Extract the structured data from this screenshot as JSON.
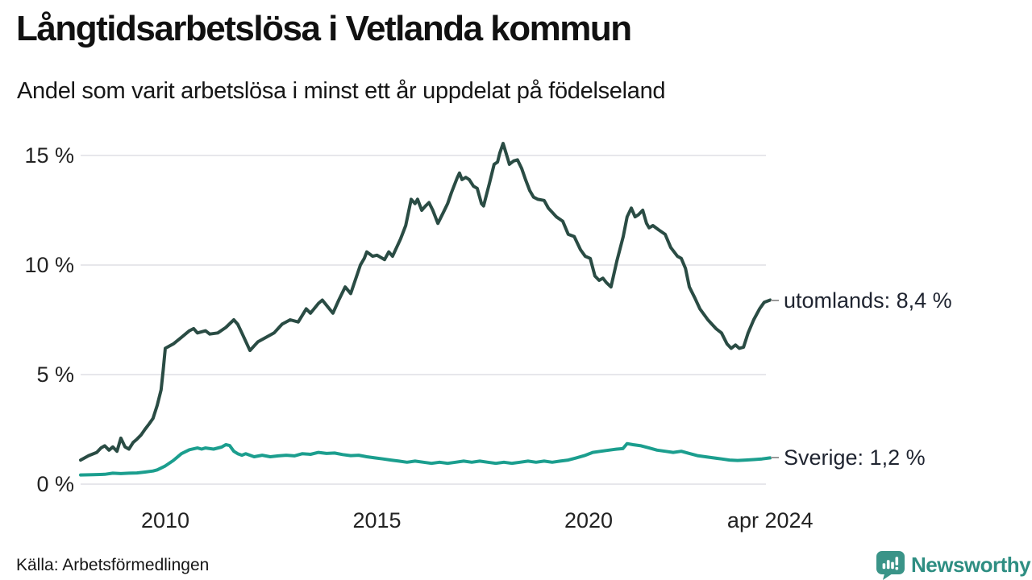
{
  "chart_data": {
    "type": "line",
    "title": "Långtidsarbetslösa i Vetlanda kommun",
    "subtitle": "Andel som varit arbetslösa i minst ett år uppdelat på födelseland",
    "source": "Källa: Arbetsförmedlingen",
    "legend_position": "end-of-line labels at right",
    "grid": "horizontal only",
    "x_axis": {
      "range_years": [
        2008.0,
        2024.33
      ],
      "ticks": [
        {
          "year": 2010,
          "label": "2010"
        },
        {
          "year": 2015,
          "label": "2015"
        },
        {
          "year": 2020,
          "label": "2020"
        },
        {
          "year": 2024.29,
          "label": "apr 2024"
        }
      ]
    },
    "y_axis": {
      "unit": "%",
      "range": [
        0,
        15.6
      ],
      "ticks": [
        {
          "value": 15,
          "label": "15 %"
        },
        {
          "value": 10,
          "label": "10 %"
        },
        {
          "value": 5,
          "label": "5 %"
        },
        {
          "value": 0,
          "label": "0 %"
        }
      ]
    },
    "series": [
      {
        "name": "utomlands",
        "label": "utomlands: 8,4 %",
        "last_value": "8,4 %",
        "color": "#2A4C44",
        "points": [
          [
            2008.0,
            1.1
          ],
          [
            2008.19,
            1.3
          ],
          [
            2008.38,
            1.45
          ],
          [
            2008.48,
            1.65
          ],
          [
            2008.57,
            1.75
          ],
          [
            2008.67,
            1.55
          ],
          [
            2008.76,
            1.7
          ],
          [
            2008.86,
            1.5
          ],
          [
            2008.95,
            2.1
          ],
          [
            2009.05,
            1.7
          ],
          [
            2009.14,
            1.6
          ],
          [
            2009.24,
            1.9
          ],
          [
            2009.33,
            2.05
          ],
          [
            2009.43,
            2.25
          ],
          [
            2009.52,
            2.5
          ],
          [
            2009.62,
            2.75
          ],
          [
            2009.71,
            3.0
          ],
          [
            2009.81,
            3.6
          ],
          [
            2009.9,
            4.3
          ],
          [
            2009.95,
            5.2
          ],
          [
            2010.0,
            6.2
          ],
          [
            2010.19,
            6.4
          ],
          [
            2010.38,
            6.7
          ],
          [
            2010.57,
            7.0
          ],
          [
            2010.67,
            7.1
          ],
          [
            2010.76,
            6.9
          ],
          [
            2010.95,
            7.0
          ],
          [
            2011.05,
            6.85
          ],
          [
            2011.24,
            6.9
          ],
          [
            2011.43,
            7.15
          ],
          [
            2011.62,
            7.5
          ],
          [
            2011.71,
            7.3
          ],
          [
            2011.81,
            6.9
          ],
          [
            2012.0,
            6.1
          ],
          [
            2012.19,
            6.5
          ],
          [
            2012.38,
            6.7
          ],
          [
            2012.57,
            6.9
          ],
          [
            2012.76,
            7.3
          ],
          [
            2012.95,
            7.5
          ],
          [
            2013.14,
            7.4
          ],
          [
            2013.33,
            8.0
          ],
          [
            2013.43,
            7.8
          ],
          [
            2013.62,
            8.25
          ],
          [
            2013.71,
            8.4
          ],
          [
            2013.96,
            7.8
          ],
          [
            2014.1,
            8.4
          ],
          [
            2014.25,
            9.0
          ],
          [
            2014.38,
            8.7
          ],
          [
            2014.61,
            10.0
          ],
          [
            2014.7,
            10.3
          ],
          [
            2014.76,
            10.6
          ],
          [
            2014.9,
            10.4
          ],
          [
            2015.0,
            10.45
          ],
          [
            2015.18,
            10.25
          ],
          [
            2015.28,
            10.6
          ],
          [
            2015.37,
            10.4
          ],
          [
            2015.56,
            11.2
          ],
          [
            2015.68,
            11.8
          ],
          [
            2015.81,
            13.0
          ],
          [
            2015.9,
            12.8
          ],
          [
            2015.96,
            13.0
          ],
          [
            2016.06,
            12.5
          ],
          [
            2016.15,
            12.7
          ],
          [
            2016.23,
            12.85
          ],
          [
            2016.32,
            12.5
          ],
          [
            2016.44,
            11.9
          ],
          [
            2016.57,
            12.4
          ],
          [
            2016.67,
            12.8
          ],
          [
            2016.76,
            13.3
          ],
          [
            2016.9,
            14.0
          ],
          [
            2016.95,
            14.2
          ],
          [
            2017.01,
            13.9
          ],
          [
            2017.1,
            14.0
          ],
          [
            2017.18,
            13.9
          ],
          [
            2017.28,
            13.6
          ],
          [
            2017.37,
            13.5
          ],
          [
            2017.47,
            12.8
          ],
          [
            2017.52,
            12.7
          ],
          [
            2017.66,
            13.75
          ],
          [
            2017.77,
            14.6
          ],
          [
            2017.85,
            14.7
          ],
          [
            2017.9,
            15.1
          ],
          [
            2017.98,
            15.55
          ],
          [
            2018.1,
            14.8
          ],
          [
            2018.13,
            14.6
          ],
          [
            2018.23,
            14.75
          ],
          [
            2018.32,
            14.8
          ],
          [
            2018.42,
            14.4
          ],
          [
            2018.51,
            13.9
          ],
          [
            2018.61,
            13.4
          ],
          [
            2018.7,
            13.1
          ],
          [
            2018.8,
            13.0
          ],
          [
            2018.95,
            12.95
          ],
          [
            2019.05,
            12.6
          ],
          [
            2019.24,
            12.2
          ],
          [
            2019.39,
            12.0
          ],
          [
            2019.52,
            11.4
          ],
          [
            2019.66,
            11.3
          ],
          [
            2019.81,
            10.7
          ],
          [
            2019.92,
            10.4
          ],
          [
            2020.04,
            10.3
          ],
          [
            2020.15,
            9.5
          ],
          [
            2020.25,
            9.3
          ],
          [
            2020.34,
            9.4
          ],
          [
            2020.42,
            9.2
          ],
          [
            2020.53,
            9.0
          ],
          [
            2020.67,
            10.2
          ],
          [
            2020.82,
            11.3
          ],
          [
            2020.91,
            12.2
          ],
          [
            2021.01,
            12.6
          ],
          [
            2021.1,
            12.2
          ],
          [
            2021.18,
            12.3
          ],
          [
            2021.28,
            12.5
          ],
          [
            2021.37,
            11.9
          ],
          [
            2021.43,
            11.7
          ],
          [
            2021.52,
            11.8
          ],
          [
            2021.66,
            11.6
          ],
          [
            2021.81,
            11.4
          ],
          [
            2021.94,
            10.8
          ],
          [
            2022.1,
            10.4
          ],
          [
            2022.19,
            10.3
          ],
          [
            2022.29,
            9.85
          ],
          [
            2022.38,
            9.0
          ],
          [
            2022.51,
            8.5
          ],
          [
            2022.63,
            8.0
          ],
          [
            2022.82,
            7.5
          ],
          [
            2023.01,
            7.1
          ],
          [
            2023.14,
            6.9
          ],
          [
            2023.27,
            6.4
          ],
          [
            2023.37,
            6.2
          ],
          [
            2023.47,
            6.35
          ],
          [
            2023.56,
            6.2
          ],
          [
            2023.66,
            6.25
          ],
          [
            2023.77,
            6.9
          ],
          [
            2023.9,
            7.5
          ],
          [
            2024.04,
            8.0
          ],
          [
            2024.15,
            8.3
          ],
          [
            2024.29,
            8.4
          ]
        ]
      },
      {
        "name": "Sverige",
        "label": "Sverige: 1,2 %",
        "last_value": "1,2 %",
        "color": "#1B9E8E",
        "points": [
          [
            2008.0,
            0.42
          ],
          [
            2008.3,
            0.43
          ],
          [
            2008.57,
            0.45
          ],
          [
            2008.76,
            0.5
          ],
          [
            2008.95,
            0.48
          ],
          [
            2009.14,
            0.5
          ],
          [
            2009.33,
            0.51
          ],
          [
            2009.52,
            0.55
          ],
          [
            2009.71,
            0.6
          ],
          [
            2009.81,
            0.65
          ],
          [
            2010.0,
            0.83
          ],
          [
            2010.19,
            1.08
          ],
          [
            2010.38,
            1.39
          ],
          [
            2010.57,
            1.57
          ],
          [
            2010.76,
            1.65
          ],
          [
            2010.86,
            1.6
          ],
          [
            2010.95,
            1.65
          ],
          [
            2011.14,
            1.6
          ],
          [
            2011.33,
            1.69
          ],
          [
            2011.43,
            1.8
          ],
          [
            2011.52,
            1.76
          ],
          [
            2011.62,
            1.5
          ],
          [
            2011.71,
            1.39
          ],
          [
            2011.81,
            1.32
          ],
          [
            2011.9,
            1.39
          ],
          [
            2012.1,
            1.25
          ],
          [
            2012.29,
            1.32
          ],
          [
            2012.48,
            1.25
          ],
          [
            2012.67,
            1.29
          ],
          [
            2012.86,
            1.32
          ],
          [
            2013.05,
            1.29
          ],
          [
            2013.24,
            1.39
          ],
          [
            2013.43,
            1.36
          ],
          [
            2013.62,
            1.45
          ],
          [
            2013.81,
            1.4
          ],
          [
            2014.0,
            1.42
          ],
          [
            2014.19,
            1.35
          ],
          [
            2014.38,
            1.3
          ],
          [
            2014.57,
            1.32
          ],
          [
            2014.76,
            1.25
          ],
          [
            2014.95,
            1.2
          ],
          [
            2015.14,
            1.15
          ],
          [
            2015.33,
            1.1
          ],
          [
            2015.52,
            1.05
          ],
          [
            2015.71,
            1.0
          ],
          [
            2015.9,
            1.05
          ],
          [
            2016.1,
            1.0
          ],
          [
            2016.29,
            0.95
          ],
          [
            2016.48,
            1.0
          ],
          [
            2016.67,
            0.95
          ],
          [
            2016.86,
            1.0
          ],
          [
            2017.05,
            1.05
          ],
          [
            2017.24,
            1.0
          ],
          [
            2017.43,
            1.05
          ],
          [
            2017.62,
            1.0
          ],
          [
            2017.81,
            0.95
          ],
          [
            2018.0,
            1.0
          ],
          [
            2018.19,
            0.95
          ],
          [
            2018.38,
            1.0
          ],
          [
            2018.57,
            1.05
          ],
          [
            2018.76,
            1.0
          ],
          [
            2018.95,
            1.05
          ],
          [
            2019.14,
            1.0
          ],
          [
            2019.33,
            1.05
          ],
          [
            2019.52,
            1.1
          ],
          [
            2019.71,
            1.2
          ],
          [
            2019.9,
            1.3
          ],
          [
            2020.1,
            1.45
          ],
          [
            2020.29,
            1.5
          ],
          [
            2020.48,
            1.55
          ],
          [
            2020.67,
            1.6
          ],
          [
            2020.81,
            1.62
          ],
          [
            2020.91,
            1.85
          ],
          [
            2021.05,
            1.8
          ],
          [
            2021.24,
            1.75
          ],
          [
            2021.43,
            1.65
          ],
          [
            2021.62,
            1.55
          ],
          [
            2021.81,
            1.5
          ],
          [
            2022.0,
            1.45
          ],
          [
            2022.19,
            1.5
          ],
          [
            2022.38,
            1.4
          ],
          [
            2022.57,
            1.3
          ],
          [
            2022.76,
            1.25
          ],
          [
            2022.95,
            1.2
          ],
          [
            2023.14,
            1.15
          ],
          [
            2023.33,
            1.1
          ],
          [
            2023.52,
            1.08
          ],
          [
            2023.71,
            1.1
          ],
          [
            2023.9,
            1.12
          ],
          [
            2024.1,
            1.15
          ],
          [
            2024.29,
            1.2
          ]
        ]
      }
    ]
  },
  "branding": {
    "name": "Newsworthy",
    "icon": "newsworthy-speech-bubble-bar-chart-icon",
    "text_color": "#2E8E82",
    "icon_color": "#3A9488"
  },
  "colors": {
    "series_utomlands": "#2A4C44",
    "series_sverige": "#1B9E8E",
    "grid": "#E7E7EB",
    "label_dash": "#999999",
    "background": "#FFFFFF"
  }
}
